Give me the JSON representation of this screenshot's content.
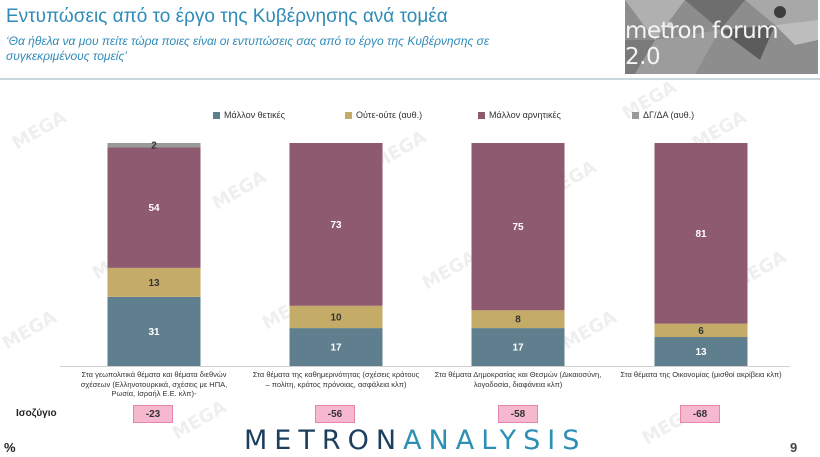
{
  "header": {
    "title": "Εντυπώσεις από το έργο της Κυβέρνησης ανά τομέα",
    "subtitle": "‘Θα ήθελα να μου πείτε τώρα ποιες είναι οι εντυπώσεις σας από το έργο της Κυβέρνησης σε συγκεκριμένους τομείς’",
    "logo_text": "metron forum 2.0"
  },
  "watermark_text": "MEGA",
  "chart_data": {
    "type": "bar",
    "stacked": true,
    "percent_stacked": true,
    "legend_position": "top",
    "categories": [
      "Στα γεωπολιτικά θέματα και θέματα διεθνών σχέσεων (Ελληνοτουρκικά, σχέσεις με ΗΠΑ, Ρωσία, Ισραήλ Ε.Ε. κλπ)-",
      "Στα θέματα της καθημερινότητας (σχέσεις κράτους – πολίτη, κράτος πρόνοιας, ασφάλεια κλπ)",
      "Στα θέματα Δημοκρατίας και Θεσμών (Δικαιοσύνη, λογοδοσία, διαφάνεια κλπ)",
      "Στα θέματα της Οικονομίας (μισθοί ακρίβεια κλπ)"
    ],
    "series": [
      {
        "name": "Μάλλον θετικές",
        "color": "#5f7f8e",
        "values": [
          31,
          17,
          17,
          13
        ]
      },
      {
        "name": "Ούτε-ούτε  (αυθ.)",
        "color": "#c4ab68",
        "values": [
          13,
          10,
          8,
          6
        ]
      },
      {
        "name": "Μάλλον αρνητικές",
        "color": "#8e5a6f",
        "values": [
          54,
          73,
          75,
          81
        ]
      },
      {
        "name": "ΔΓ/ΔΑ (αυθ.)",
        "color": "#999999",
        "values": [
          2,
          0,
          0,
          0
        ]
      }
    ],
    "data_labels": [
      [
        "31",
        "17",
        "17",
        "13"
      ],
      [
        "13",
        "10",
        "8",
        "6"
      ],
      [
        "54",
        "73",
        "75",
        "81"
      ],
      [
        "2",
        "",
        "",
        ""
      ]
    ],
    "balance_label": "Ισοζύγιο",
    "balance_values": [
      "-23",
      "-56",
      "-58",
      "-68"
    ],
    "y_unit_label": "%"
  },
  "footer": {
    "brand_metron": "METRON",
    "brand_analysis": "ANALYSIS",
    "page_number": "9"
  }
}
